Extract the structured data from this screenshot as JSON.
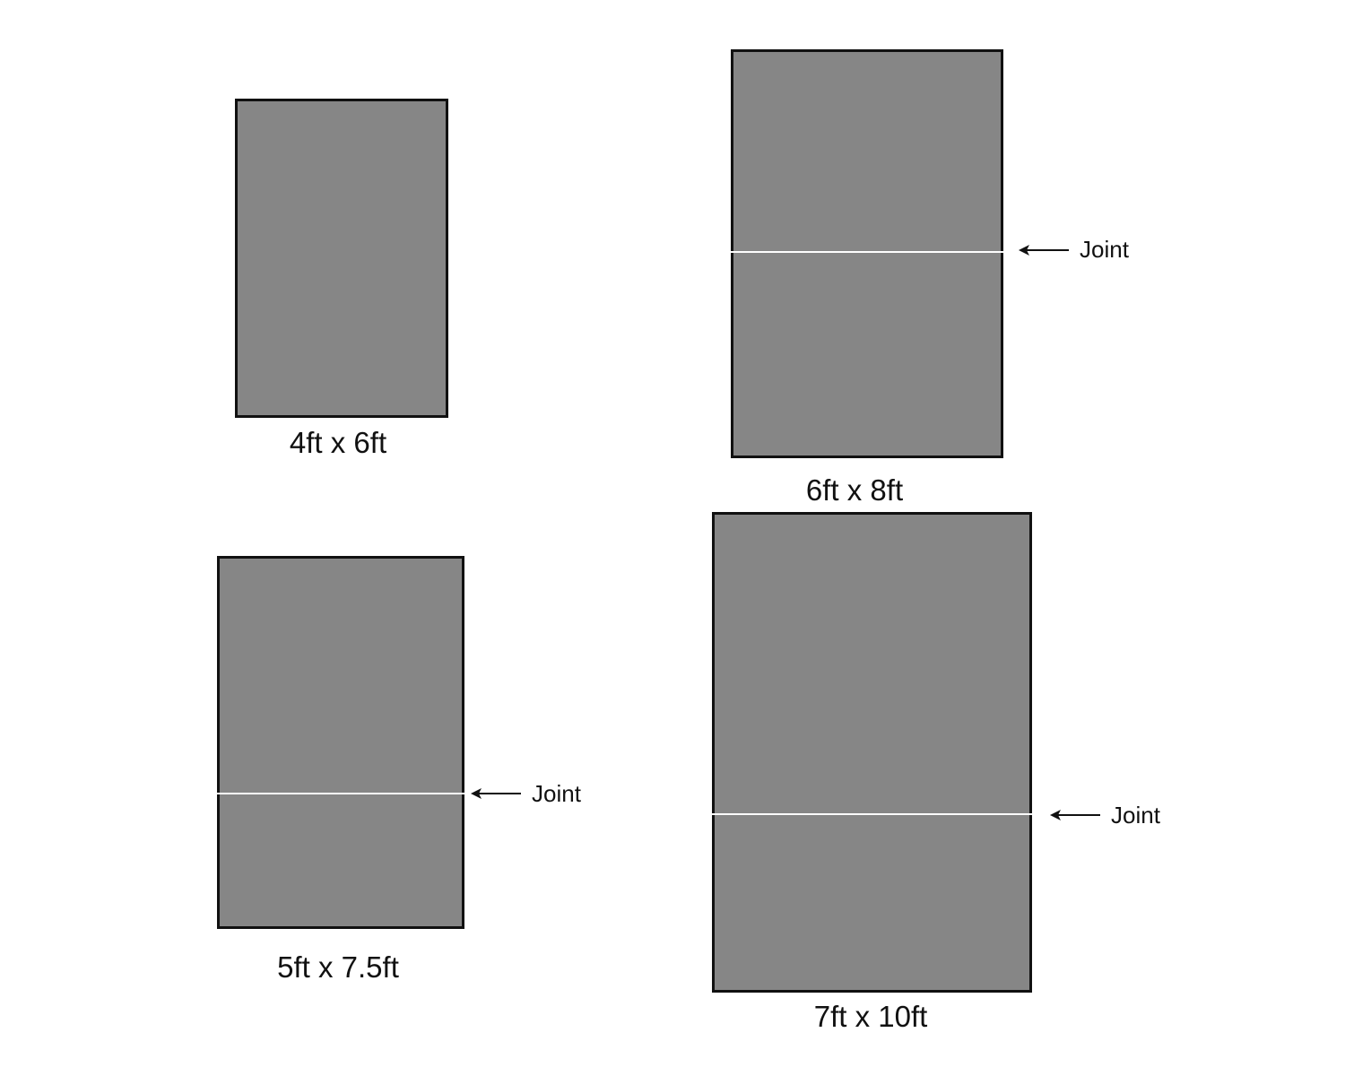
{
  "colors": {
    "panel_fill": "#868686",
    "border": "#111111",
    "joint": "#ffffff"
  },
  "panels": [
    {
      "size_label": "4ft x 6ft",
      "has_joint": false
    },
    {
      "size_label": "6ft x 8ft",
      "has_joint": true,
      "joint_label": "Joint"
    },
    {
      "size_label": "5ft x 7.5ft",
      "has_joint": true,
      "joint_label": "Joint"
    },
    {
      "size_label": "7ft x 10ft",
      "has_joint": true,
      "joint_label": "Joint"
    }
  ]
}
